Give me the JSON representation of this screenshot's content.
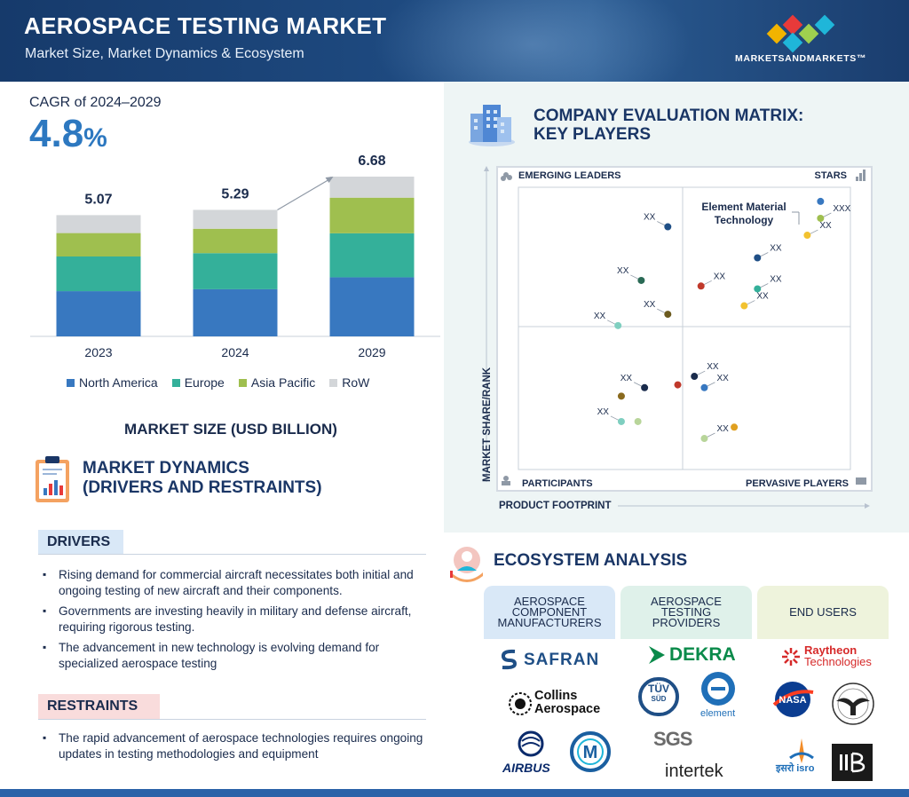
{
  "header": {
    "title": "AEROSPACE TESTING MARKET",
    "subtitle": "Market Size, Market Dynamics & Ecosystem",
    "brand": "MARKETSANDMARKETS™"
  },
  "cagr": {
    "label": "CAGR of 2024–2029",
    "value": "4.8",
    "unit": "%"
  },
  "chart_data": {
    "type": "bar",
    "stacked": true,
    "categories": [
      "2023",
      "2024",
      "2029"
    ],
    "totals": [
      "5.07",
      "5.29",
      "6.68"
    ],
    "series": [
      {
        "name": "North America",
        "color": "#3878c0",
        "values": [
          1.89,
          1.97,
          2.47
        ]
      },
      {
        "name": "Europe",
        "color": "#34b09a",
        "values": [
          1.45,
          1.51,
          1.84
        ]
      },
      {
        "name": "Asia Pacific",
        "color": "#9fbf4f",
        "values": [
          0.98,
          1.02,
          1.49
        ]
      },
      {
        "name": "RoW",
        "color": "#d3d6d9",
        "values": [
          0.75,
          0.79,
          0.88
        ]
      }
    ],
    "title": "MARKET SIZE (USD BILLION)",
    "ylim": [
      0,
      6.68
    ],
    "legend": "bottom"
  },
  "dynamics": {
    "title_line1": "MARKET DYNAMICS",
    "title_line2": "(DRIVERS AND RESTRAINTS)",
    "drivers_label": "DRIVERS",
    "drivers": [
      "Rising demand for commercial aircraft necessitates both initial and ongoing testing of new aircraft and their components.",
      "Governments are investing heavily in military and defense aircraft, requiring rigorous testing.",
      "The advancement in new technology is evolving demand for specialized aerospace testing"
    ],
    "restraints_label": "RESTRAINTS",
    "restraints": [
      "The rapid advancement of aerospace technologies requires ongoing updates in testing methodologies and equipment"
    ]
  },
  "matrix": {
    "title_line1": "COMPANY EVALUATION MATRIX:",
    "title_line2": "KEY PLAYERS",
    "quadrants": {
      "top_left": "EMERGING LEADERS",
      "top_right": "STARS",
      "bottom_left": "PARTICIPANTS",
      "bottom_right": "PERVASIVE PLAYERS"
    },
    "y_axis": "MARKET SHARE/RANK",
    "x_axis": "PRODUCT FOOTPRINT",
    "highlight_line1": "Element Material",
    "highlight_line2": "Technology",
    "points": [
      {
        "x": 0.91,
        "y": 0.95,
        "color": "#3878c0",
        "label": ""
      },
      {
        "x": 0.91,
        "y": 0.89,
        "color": "#9fbf4f",
        "label": "XXX"
      },
      {
        "x": 0.87,
        "y": 0.83,
        "color": "#f2c230",
        "label": "XX"
      },
      {
        "x": 0.72,
        "y": 0.75,
        "color": "#1f4f86",
        "label": "XX"
      },
      {
        "x": 0.72,
        "y": 0.64,
        "color": "#34b09a",
        "label": "XX"
      },
      {
        "x": 0.68,
        "y": 0.58,
        "color": "#f2c230",
        "label": "XX"
      },
      {
        "x": 0.55,
        "y": 0.65,
        "color": "#c0392b",
        "label": "XX"
      },
      {
        "x": 0.45,
        "y": 0.86,
        "color": "#1f4f86",
        "label": "XX"
      },
      {
        "x": 0.37,
        "y": 0.67,
        "color": "#2a6a55",
        "label": "XX"
      },
      {
        "x": 0.45,
        "y": 0.55,
        "color": "#6b5a1e",
        "label": "XX"
      },
      {
        "x": 0.3,
        "y": 0.51,
        "color": "#7fcfc0",
        "label": "XX"
      },
      {
        "x": 0.53,
        "y": 0.33,
        "color": "#1a2b4c",
        "label": "XX"
      },
      {
        "x": 0.48,
        "y": 0.3,
        "color": "#c0392b",
        "label": ""
      },
      {
        "x": 0.38,
        "y": 0.29,
        "color": "#1a2b4c",
        "label": "XX"
      },
      {
        "x": 0.31,
        "y": 0.26,
        "color": "#8a6a1e",
        "label": ""
      },
      {
        "x": 0.56,
        "y": 0.29,
        "color": "#3878c0",
        "label": "XX"
      },
      {
        "x": 0.31,
        "y": 0.17,
        "color": "#7fcfc0",
        "label": "XX"
      },
      {
        "x": 0.36,
        "y": 0.17,
        "color": "#b8d59a",
        "label": ""
      },
      {
        "x": 0.65,
        "y": 0.15,
        "color": "#e0a020",
        "label": ""
      },
      {
        "x": 0.56,
        "y": 0.11,
        "color": "#b8d59a",
        "label": "XX"
      }
    ]
  },
  "ecosystem": {
    "title": "ECOSYSTEM ANALYSIS",
    "columns": [
      {
        "lines": [
          "AEROSPACE",
          "COMPONENT",
          "MANUFACTURERS"
        ]
      },
      {
        "lines": [
          "AEROSPACE",
          "TESTING",
          "PROVIDERS"
        ]
      },
      {
        "lines": [
          "END USERS"
        ]
      }
    ],
    "logos": {
      "safran": "SAFRAN",
      "collins1": "Collins",
      "collins2": "Aerospace",
      "airbus": "AIRBUS",
      "dekra": "DEKRA",
      "tuv1": "TÜV",
      "tuv2": "SÜD",
      "element": "element",
      "sgs": "SGS",
      "intertek": "intertek",
      "raytheon1": "Raytheon",
      "raytheon2": "Technologies",
      "nasa": "NASA",
      "isro": "इसरो isro"
    }
  }
}
